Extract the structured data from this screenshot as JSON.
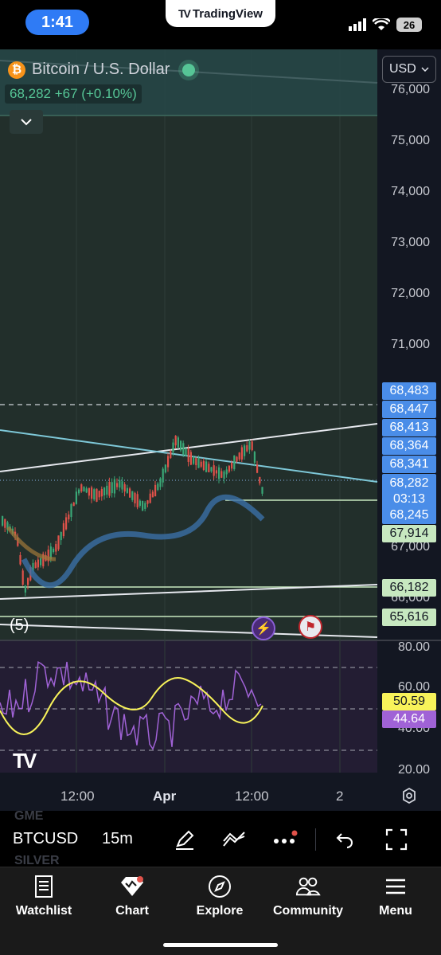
{
  "status_bar": {
    "time": "1:41",
    "banner_title": "TradingView",
    "battery": "26"
  },
  "chart_header": {
    "symbol_title": "Bitcoin / U.S. Dollar",
    "price_line": "68,282 +67 (+0.10%)",
    "currency": "USD"
  },
  "price_axis": {
    "labels": [
      "76,000",
      "75,000",
      "74,000",
      "73,000",
      "72,000",
      "71,000",
      "67,000",
      "66,000"
    ],
    "badges": {
      "b1": "68,483",
      "b2": "68,447",
      "b3": "68,413",
      "b4": "68,364",
      "b5": "68,341",
      "current_price": "68,282",
      "countdown": "03:13",
      "b6": "68,245",
      "b7": "67,914",
      "b8": "66,182",
      "b9": "65,616"
    }
  },
  "pane_label": "(5)",
  "rsi_pane": {
    "axis_labels": [
      "80.00",
      "60.00",
      "40.00",
      "20.00"
    ],
    "rsi_ma_value": "50.59",
    "rsi_value": "44.64"
  },
  "time_axis": {
    "labels": [
      "12:00",
      "Apr",
      "12:00",
      "2"
    ]
  },
  "toolbar": {
    "ghost_top": "GME",
    "ghost_bottom": "SILVER",
    "symbol": "BTCUSD",
    "interval": "15m"
  },
  "tabs": {
    "watchlist": "Watchlist",
    "chart": "Chart",
    "explore": "Explore",
    "community": "Community",
    "menu": "Menu"
  },
  "colors": {
    "chart_bg": "#222f2b",
    "rsi_bg": "#231d33",
    "up_candle": "#3aa776",
    "down_candle": "#e0524a",
    "rsi_line": "#a062d6",
    "rsi_ma": "#f8f35a",
    "price_badge": "#4a8de8"
  },
  "icons": [
    "bitcoin-icon",
    "chevron-down-icon",
    "pencil-icon",
    "indicators-icon",
    "more-dots-icon",
    "undo-icon",
    "fullscreen-icon",
    "settings-icon",
    "watchlist-icon",
    "chart-icon",
    "compass-icon",
    "community-icon",
    "menu-icon"
  ]
}
